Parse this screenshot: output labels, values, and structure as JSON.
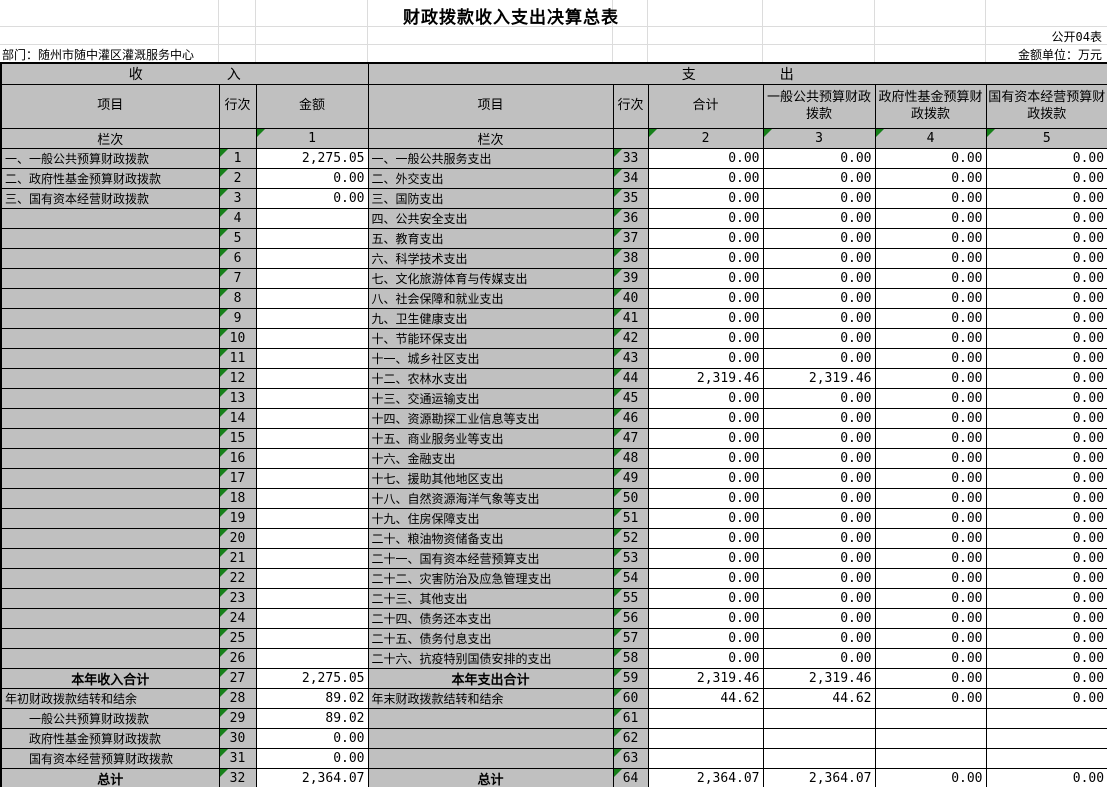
{
  "title": "财政拨款收入支出决算总表",
  "meta": {
    "table_code": "公开04表",
    "department_label": "部门：随州市随中灌区灌溉服务中心",
    "unit_label": "金额单位：万元"
  },
  "income": {
    "section_title": "收　　　　　　入",
    "headers": {
      "item": "项目",
      "row_no": "行次",
      "amount": "金额"
    },
    "lanci_label": "栏次",
    "col_num": "1",
    "rows": [
      {
        "item": "一、一般公共预算财政拨款",
        "no": "1",
        "amount": "2,275.05"
      },
      {
        "item": "二、政府性基金预算财政拨款",
        "no": "2",
        "amount": "0.00"
      },
      {
        "item": "三、国有资本经营财政拨款",
        "no": "3",
        "amount": "0.00"
      },
      {
        "item": "",
        "no": "4",
        "amount": ""
      },
      {
        "item": "",
        "no": "5",
        "amount": ""
      },
      {
        "item": "",
        "no": "6",
        "amount": ""
      },
      {
        "item": "",
        "no": "7",
        "amount": ""
      },
      {
        "item": "",
        "no": "8",
        "amount": ""
      },
      {
        "item": "",
        "no": "9",
        "amount": ""
      },
      {
        "item": "",
        "no": "10",
        "amount": ""
      },
      {
        "item": "",
        "no": "11",
        "amount": ""
      },
      {
        "item": "",
        "no": "12",
        "amount": ""
      },
      {
        "item": "",
        "no": "13",
        "amount": ""
      },
      {
        "item": "",
        "no": "14",
        "amount": ""
      },
      {
        "item": "",
        "no": "15",
        "amount": ""
      },
      {
        "item": "",
        "no": "16",
        "amount": ""
      },
      {
        "item": "",
        "no": "17",
        "amount": ""
      },
      {
        "item": "",
        "no": "18",
        "amount": ""
      },
      {
        "item": "",
        "no": "19",
        "amount": ""
      },
      {
        "item": "",
        "no": "20",
        "amount": ""
      },
      {
        "item": "",
        "no": "21",
        "amount": ""
      },
      {
        "item": "",
        "no": "22",
        "amount": ""
      },
      {
        "item": "",
        "no": "23",
        "amount": ""
      },
      {
        "item": "",
        "no": "24",
        "amount": ""
      },
      {
        "item": "",
        "no": "25",
        "amount": ""
      },
      {
        "item": "",
        "no": "26",
        "amount": ""
      },
      {
        "item": "本年收入合计",
        "no": "27",
        "amount": "2,275.05",
        "style": "total"
      },
      {
        "item": "年初财政拨款结转和结余",
        "no": "28",
        "amount": "89.02"
      },
      {
        "item": "一般公共预算财政拨款",
        "no": "29",
        "amount": "89.02",
        "style": "indent"
      },
      {
        "item": "政府性基金预算财政拨款",
        "no": "30",
        "amount": "0.00",
        "style": "indent"
      },
      {
        "item": "国有资本经营预算财政拨款",
        "no": "31",
        "amount": "0.00",
        "style": "indent"
      },
      {
        "item": "总计",
        "no": "32",
        "amount": "2,364.07",
        "style": "total"
      }
    ]
  },
  "expenditure": {
    "section_title": "支　　　　　　出",
    "headers": {
      "item": "项目",
      "row_no": "行次",
      "total": "合计",
      "general": "一般公共预算财政拨款",
      "govfund": "政府性基金预算财政拨款",
      "statecap": "国有资本经营预算财政拨款"
    },
    "lanci_label": "栏次",
    "col_nums": [
      "2",
      "3",
      "4",
      "5"
    ],
    "rows": [
      {
        "item": "一、一般公共服务支出",
        "no": "33",
        "vals": [
          "0.00",
          "0.00",
          "0.00",
          "0.00"
        ]
      },
      {
        "item": "二、外交支出",
        "no": "34",
        "vals": [
          "0.00",
          "0.00",
          "0.00",
          "0.00"
        ]
      },
      {
        "item": "三、国防支出",
        "no": "35",
        "vals": [
          "0.00",
          "0.00",
          "0.00",
          "0.00"
        ]
      },
      {
        "item": "四、公共安全支出",
        "no": "36",
        "vals": [
          "0.00",
          "0.00",
          "0.00",
          "0.00"
        ]
      },
      {
        "item": "五、教育支出",
        "no": "37",
        "vals": [
          "0.00",
          "0.00",
          "0.00",
          "0.00"
        ]
      },
      {
        "item": "六、科学技术支出",
        "no": "38",
        "vals": [
          "0.00",
          "0.00",
          "0.00",
          "0.00"
        ]
      },
      {
        "item": "七、文化旅游体育与传媒支出",
        "no": "39",
        "vals": [
          "0.00",
          "0.00",
          "0.00",
          "0.00"
        ]
      },
      {
        "item": "八、社会保障和就业支出",
        "no": "40",
        "vals": [
          "0.00",
          "0.00",
          "0.00",
          "0.00"
        ]
      },
      {
        "item": "九、卫生健康支出",
        "no": "41",
        "vals": [
          "0.00",
          "0.00",
          "0.00",
          "0.00"
        ]
      },
      {
        "item": "十、节能环保支出",
        "no": "42",
        "vals": [
          "0.00",
          "0.00",
          "0.00",
          "0.00"
        ]
      },
      {
        "item": "十一、城乡社区支出",
        "no": "43",
        "vals": [
          "0.00",
          "0.00",
          "0.00",
          "0.00"
        ]
      },
      {
        "item": "十二、农林水支出",
        "no": "44",
        "vals": [
          "2,319.46",
          "2,319.46",
          "0.00",
          "0.00"
        ]
      },
      {
        "item": "十三、交通运输支出",
        "no": "45",
        "vals": [
          "0.00",
          "0.00",
          "0.00",
          "0.00"
        ]
      },
      {
        "item": "十四、资源勘探工业信息等支出",
        "no": "46",
        "vals": [
          "0.00",
          "0.00",
          "0.00",
          "0.00"
        ]
      },
      {
        "item": "十五、商业服务业等支出",
        "no": "47",
        "vals": [
          "0.00",
          "0.00",
          "0.00",
          "0.00"
        ]
      },
      {
        "item": "十六、金融支出",
        "no": "48",
        "vals": [
          "0.00",
          "0.00",
          "0.00",
          "0.00"
        ]
      },
      {
        "item": "十七、援助其他地区支出",
        "no": "49",
        "vals": [
          "0.00",
          "0.00",
          "0.00",
          "0.00"
        ]
      },
      {
        "item": "十八、自然资源海洋气象等支出",
        "no": "50",
        "vals": [
          "0.00",
          "0.00",
          "0.00",
          "0.00"
        ]
      },
      {
        "item": "十九、住房保障支出",
        "no": "51",
        "vals": [
          "0.00",
          "0.00",
          "0.00",
          "0.00"
        ]
      },
      {
        "item": "二十、粮油物资储备支出",
        "no": "52",
        "vals": [
          "0.00",
          "0.00",
          "0.00",
          "0.00"
        ]
      },
      {
        "item": "二十一、国有资本经营预算支出",
        "no": "53",
        "vals": [
          "0.00",
          "0.00",
          "0.00",
          "0.00"
        ]
      },
      {
        "item": "二十二、灾害防治及应急管理支出",
        "no": "54",
        "vals": [
          "0.00",
          "0.00",
          "0.00",
          "0.00"
        ]
      },
      {
        "item": "二十三、其他支出",
        "no": "55",
        "vals": [
          "0.00",
          "0.00",
          "0.00",
          "0.00"
        ]
      },
      {
        "item": "二十四、债务还本支出",
        "no": "56",
        "vals": [
          "0.00",
          "0.00",
          "0.00",
          "0.00"
        ]
      },
      {
        "item": "二十五、债务付息支出",
        "no": "57",
        "vals": [
          "0.00",
          "0.00",
          "0.00",
          "0.00"
        ]
      },
      {
        "item": "二十六、抗疫特别国债安排的支出",
        "no": "58",
        "vals": [
          "0.00",
          "0.00",
          "0.00",
          "0.00"
        ]
      },
      {
        "item": "本年支出合计",
        "no": "59",
        "vals": [
          "2,319.46",
          "2,319.46",
          "0.00",
          "0.00"
        ],
        "style": "total"
      },
      {
        "item": "年末财政拨款结转和结余",
        "no": "60",
        "vals": [
          "44.62",
          "44.62",
          "0.00",
          "0.00"
        ]
      },
      {
        "item": "",
        "no": "61",
        "vals": [
          "",
          "",
          "",
          ""
        ]
      },
      {
        "item": "",
        "no": "62",
        "vals": [
          "",
          "",
          "",
          ""
        ]
      },
      {
        "item": "",
        "no": "63",
        "vals": [
          "",
          "",
          "",
          ""
        ]
      },
      {
        "item": "总计",
        "no": "64",
        "vals": [
          "2,364.07",
          "2,364.07",
          "0.00",
          "0.00"
        ],
        "style": "total"
      }
    ]
  }
}
